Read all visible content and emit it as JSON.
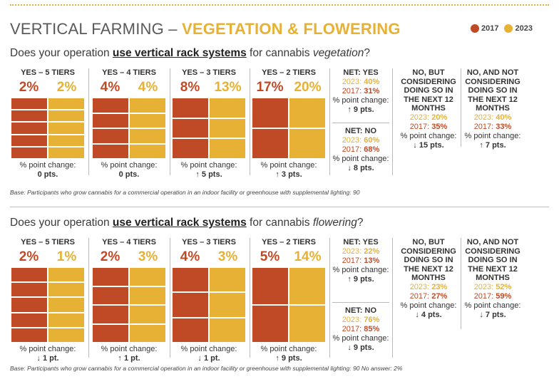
{
  "header": {
    "title_main": "VERTICAL FARMING – ",
    "title_accent": "VEGETATION & FLOWERING"
  },
  "legend": [
    {
      "label": "2017",
      "color": "#bf4a25"
    },
    {
      "label": "2023",
      "color": "#e6b134"
    }
  ],
  "colors": {
    "y2017": "#bf4a25",
    "y2023": "#e6b134"
  },
  "vegetation": {
    "question_pre": "Does your operation ",
    "question_hl": "use vertical rack systems",
    "question_mid": " for cannabis ",
    "question_it": "vegetation",
    "question_end": "?",
    "change_label": "% point change:",
    "tiers": [
      {
        "label": "YES – 5 TIERS",
        "v2017": "2%",
        "v2023": "2%",
        "change": "0 pts.",
        "rows": 5
      },
      {
        "label": "YES – 4 TIERS",
        "v2017": "4%",
        "v2023": "4%",
        "change": "0 pts.",
        "rows": 4
      },
      {
        "label": "YES – 3 TIERS",
        "v2017": "8%",
        "v2023": "13%",
        "change": "↑ 5 pts.",
        "rows": 3
      },
      {
        "label": "YES – 2 TIERS",
        "v2017": "17%",
        "v2023": "20%",
        "change": "↑ 3 pts.",
        "rows": 2
      }
    ],
    "net_yes": {
      "head": "NET: YES",
      "y2023_label": "2023: ",
      "y2023": "40%",
      "y2017_label": "2017: ",
      "y2017": "31%",
      "change_label": "% point change:",
      "change": "↑ 9 pts."
    },
    "net_no": {
      "head": "NET: NO",
      "y2023_label": "2023: ",
      "y2023": "60%",
      "y2017_label": "2017: ",
      "y2017": "68%",
      "change_label": "% point change:",
      "change": "↓ 8 pts."
    },
    "no_but": {
      "head_lines": [
        "NO, BUT",
        "CONSIDERING",
        "DOING SO IN",
        "THE NEXT 12",
        "MONTHS"
      ],
      "y2023_label": "2023: ",
      "y2023": "20%",
      "y2017_label": "2017: ",
      "y2017": "35%",
      "change_label": "% point change:",
      "change": "↓ 15 pts."
    },
    "no_not": {
      "head_lines": [
        "NO, AND NOT",
        "CONSIDERING",
        "DOING SO IN",
        "THE NEXT 12",
        "MONTHS"
      ],
      "y2023_label": "2023: ",
      "y2023": "40%",
      "y2017_label": "2017: ",
      "y2017": "33%",
      "change_label": "% point change:",
      "change": "↑ 7 pts."
    },
    "base": "Base: Participants who grow cannabis for a commercial operation in an indoor facility or greenhouse with supplemental lighting: 90"
  },
  "flowering": {
    "question_pre": "Does your operation ",
    "question_hl": "use vertical rack systems",
    "question_mid": " for cannabis ",
    "question_it": "flowering",
    "question_end": "?",
    "change_label": "% point change:",
    "tiers": [
      {
        "label": "YES – 5 TIERS",
        "v2017": "2%",
        "v2023": "1%",
        "change": "↓ 1 pt.",
        "rows": 5
      },
      {
        "label": "YES – 4 TIERS",
        "v2017": "2%",
        "v2023": "3%",
        "change": "↑ 1 pt.",
        "rows": 4
      },
      {
        "label": "YES – 3 TIERS",
        "v2017": "4%",
        "v2023": "3%",
        "change": "↓ 1 pt.",
        "rows": 3
      },
      {
        "label": "YES – 2 TIERS",
        "v2017": "5%",
        "v2023": "14%",
        "change": "↑ 9 pts.",
        "rows": 2
      }
    ],
    "net_yes": {
      "head": "NET: YES",
      "y2023_label": "2023: ",
      "y2023": "22%",
      "y2017_label": "2017: ",
      "y2017": "13%",
      "change_label": "% point change:",
      "change": "↑ 9 pts."
    },
    "net_no": {
      "head": "NET: NO",
      "y2023_label": "2023: ",
      "y2023": "76%",
      "y2017_label": "2017: ",
      "y2017": "85%",
      "change_label": "% point change:",
      "change": "↓ 9 pts."
    },
    "no_but": {
      "head_lines": [
        "NO, BUT",
        "CONSIDERING",
        "DOING SO IN",
        "THE NEXT 12",
        "MONTHS"
      ],
      "y2023_label": "2023: ",
      "y2023": "23%",
      "y2017_label": "2017: ",
      "y2017": "27%",
      "change_label": "% point change:",
      "change": "↓ 4 pts."
    },
    "no_not": {
      "head_lines": [
        "NO, AND NOT",
        "CONSIDERING",
        "DOING SO IN",
        "THE NEXT 12",
        "MONTHS"
      ],
      "y2023_label": "2023: ",
      "y2023": "52%",
      "y2017_label": "2017: ",
      "y2017": "59%",
      "change_label": "% point change:",
      "change": "↓ 7 pts."
    },
    "base": "Base: Participants who grow cannabis for a commercial operation in an indoor facility or greenhouse with supplemental lighting: 90 No answer: 2%"
  },
  "chart_data": [
    {
      "type": "table",
      "title": "Does your operation use vertical rack systems for cannabis vegetation?",
      "categories": [
        "YES – 5 TIERS",
        "YES – 4 TIERS",
        "YES – 3 TIERS",
        "YES – 2 TIERS",
        "NET: YES",
        "NET: NO",
        "NO, BUT CONSIDERING DOING SO IN THE NEXT 12 MONTHS",
        "NO, AND NOT CONSIDERING DOING SO IN THE NEXT 12 MONTHS"
      ],
      "series": [
        {
          "name": "2017",
          "values": [
            2,
            4,
            8,
            17,
            31,
            68,
            35,
            33
          ]
        },
        {
          "name": "2023",
          "values": [
            2,
            4,
            13,
            20,
            40,
            60,
            20,
            40
          ]
        }
      ],
      "point_change": [
        0,
        0,
        5,
        3,
        9,
        -8,
        -15,
        7
      ]
    },
    {
      "type": "table",
      "title": "Does your operation use vertical rack systems for cannabis flowering?",
      "categories": [
        "YES – 5 TIERS",
        "YES – 4 TIERS",
        "YES – 3 TIERS",
        "YES – 2 TIERS",
        "NET: YES",
        "NET: NO",
        "NO, BUT CONSIDERING DOING SO IN THE NEXT 12 MONTHS",
        "NO, AND NOT CONSIDERING DOING SO IN THE NEXT 12 MONTHS"
      ],
      "series": [
        {
          "name": "2017",
          "values": [
            2,
            2,
            4,
            5,
            13,
            85,
            27,
            59
          ]
        },
        {
          "name": "2023",
          "values": [
            1,
            3,
            3,
            14,
            22,
            76,
            23,
            52
          ]
        }
      ],
      "point_change": [
        -1,
        1,
        -1,
        9,
        9,
        -9,
        -4,
        -7
      ]
    }
  ]
}
